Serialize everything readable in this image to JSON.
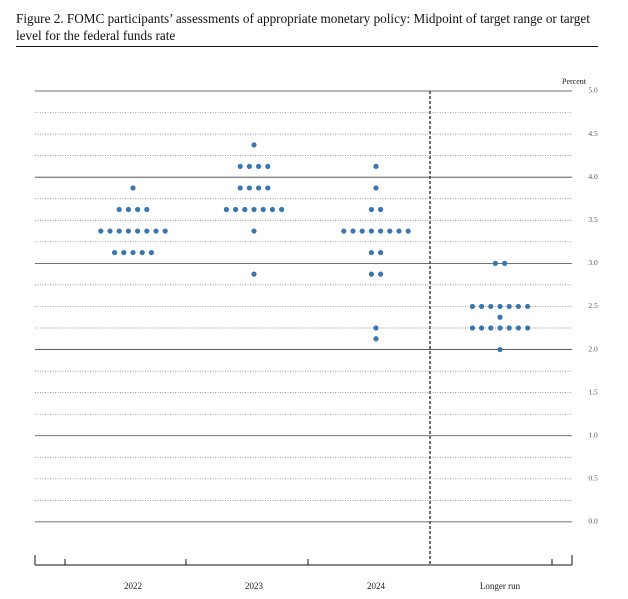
{
  "chart_data": {
    "type": "dot",
    "title": "Figure 2.  FOMC participants’ assessments of appropriate monetary policy: Midpoint of target range or target level for the federal funds rate",
    "y_label": "Percent",
    "categories": [
      "2022",
      "2023",
      "2024",
      "Longer run"
    ],
    "dots": [
      [
        {
          "value": 3.875,
          "count": 1
        },
        {
          "value": 3.625,
          "count": 4
        },
        {
          "value": 3.375,
          "count": 8
        },
        {
          "value": 3.125,
          "count": 5
        }
      ],
      [
        {
          "value": 4.375,
          "count": 1
        },
        {
          "value": 4.125,
          "count": 4
        },
        {
          "value": 3.875,
          "count": 4
        },
        {
          "value": 3.625,
          "count": 7
        },
        {
          "value": 3.375,
          "count": 1
        },
        {
          "value": 2.875,
          "count": 1
        }
      ],
      [
        {
          "value": 4.125,
          "count": 1
        },
        {
          "value": 3.875,
          "count": 1
        },
        {
          "value": 3.625,
          "count": 2
        },
        {
          "value": 3.375,
          "count": 8
        },
        {
          "value": 3.125,
          "count": 2
        },
        {
          "value": 2.875,
          "count": 2
        },
        {
          "value": 2.25,
          "count": 1
        },
        {
          "value": 2.125,
          "count": 1
        }
      ],
      [
        {
          "value": 3.0,
          "count": 2
        },
        {
          "value": 2.5,
          "count": 7
        },
        {
          "value": 2.375,
          "count": 1
        },
        {
          "value": 2.25,
          "count": 7
        },
        {
          "value": 2.0,
          "count": 1
        }
      ]
    ],
    "color": "#3a76b0",
    "ylim": [
      -0.5,
      5.0
    ],
    "yticks": [
      {
        "value": 0,
        "label": "0.0"
      },
      {
        "value": 0.5,
        "label": "0.5"
      },
      {
        "value": 1,
        "label": "1.0"
      },
      {
        "value": 1.5,
        "label": "1.5"
      },
      {
        "value": 2,
        "label": "2.0"
      },
      {
        "value": 2.5,
        "label": "2.5"
      },
      {
        "value": 3,
        "label": "3.0"
      },
      {
        "value": 3.5,
        "label": "3.5"
      },
      {
        "value": 4,
        "label": "4.0"
      },
      {
        "value": 4.5,
        "label": "4.5"
      },
      {
        "value": 5,
        "label": "5.0"
      }
    ],
    "grid_lines": [
      0,
      0.25,
      0.5,
      0.75,
      1,
      1.25,
      1.5,
      1.75,
      2,
      2.25,
      2.5,
      2.75,
      3,
      3.25,
      3.5,
      3.75,
      4,
      4.25,
      4.5,
      4.75,
      5
    ]
  }
}
